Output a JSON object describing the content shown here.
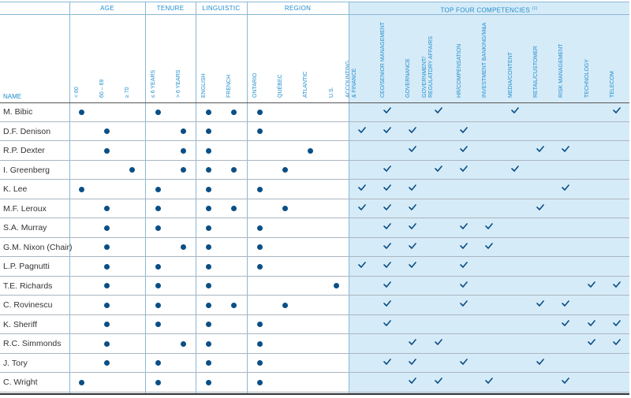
{
  "headers": {
    "name": "NAME",
    "age": "AGE",
    "tenure": "TENURE",
    "linguistic": "LINGUISTIC",
    "region": "REGION",
    "competencies": "TOP FOUR COMPETENCIES",
    "competencies_note": "(1)"
  },
  "columns": [
    {
      "label": "< 60"
    },
    {
      "label": "60 – 69"
    },
    {
      "label": "≥ 70"
    },
    {
      "label": "≤ 6 YEARS"
    },
    {
      "label": "> 6 YEARS"
    },
    {
      "label": "ENGLISH"
    },
    {
      "label": "FRENCH"
    },
    {
      "label": "ONTARIO"
    },
    {
      "label": "QUÉBEC"
    },
    {
      "label": "ATLANTIC"
    },
    {
      "label": "U.S."
    },
    {
      "label": "ACCOUNTING\n& FINANCE"
    },
    {
      "label": "CEO/SENIOR MANAGEMENT"
    },
    {
      "label": "GOVERNANCE"
    },
    {
      "label": "GOVERNMENT/\nREGULATORY AFFAIRS"
    },
    {
      "label": "HR/COMPENSATION"
    },
    {
      "label": "INVESTMENT BANKING/M&A"
    },
    {
      "label": "MEDIA/CONTENT"
    },
    {
      "label": "RETAIL/CUSTOMER"
    },
    {
      "label": "RISK MANAGEMENT"
    },
    {
      "label": "TECHNOLOGY"
    },
    {
      "label": "TELECOM"
    }
  ],
  "directors": [
    {
      "name": "M. Bibic",
      "marks": [
        0,
        3,
        5,
        6,
        7
      ],
      "checks": [
        12,
        14,
        17,
        21
      ]
    },
    {
      "name": "D.F. Denison",
      "marks": [
        1,
        4,
        5,
        7
      ],
      "checks": [
        11,
        12,
        13,
        15
      ]
    },
    {
      "name": "R.P. Dexter",
      "marks": [
        1,
        4,
        5,
        9
      ],
      "checks": [
        13,
        15,
        18,
        19
      ]
    },
    {
      "name": "I. Greenberg",
      "marks": [
        2,
        4,
        5,
        6,
        8
      ],
      "checks": [
        12,
        14,
        15,
        17
      ]
    },
    {
      "name": "K. Lee",
      "marks": [
        0,
        3,
        5,
        7
      ],
      "checks": [
        11,
        12,
        13,
        19
      ]
    },
    {
      "name": "M.F. Leroux",
      "marks": [
        1,
        3,
        5,
        6,
        8
      ],
      "checks": [
        11,
        12,
        13,
        18
      ]
    },
    {
      "name": "S.A. Murray",
      "marks": [
        1,
        3,
        5,
        7
      ],
      "checks": [
        12,
        13,
        15,
        16
      ]
    },
    {
      "name": "G.M. Nixon (Chair)",
      "marks": [
        1,
        4,
        5,
        7
      ],
      "checks": [
        12,
        13,
        15,
        16
      ]
    },
    {
      "name": "L.P. Pagnutti",
      "marks": [
        1,
        3,
        5,
        7
      ],
      "checks": [
        11,
        12,
        13,
        15
      ]
    },
    {
      "name": "T.E. Richards",
      "marks": [
        1,
        3,
        5,
        10
      ],
      "checks": [
        12,
        15,
        20,
        21
      ]
    },
    {
      "name": "C. Rovinescu",
      "marks": [
        1,
        3,
        5,
        6,
        8
      ],
      "checks": [
        12,
        15,
        18,
        19
      ]
    },
    {
      "name": "K. Sheriff",
      "marks": [
        1,
        3,
        5,
        7
      ],
      "checks": [
        12,
        19,
        20,
        21
      ]
    },
    {
      "name": "R.C. Simmonds",
      "marks": [
        1,
        4,
        5,
        7
      ],
      "checks": [
        13,
        14,
        20,
        21
      ]
    },
    {
      "name": "J. Tory",
      "marks": [
        1,
        3,
        5,
        7
      ],
      "checks": [
        12,
        13,
        15,
        18
      ]
    },
    {
      "name": "C. Wright",
      "marks": [
        0,
        3,
        5,
        7
      ],
      "checks": [
        13,
        14,
        16,
        19
      ]
    }
  ],
  "colors": {
    "dot": "#0a4f86",
    "check": "#0a4f86",
    "header_text": "#1f8dcc",
    "competency_bg": "#d6ebf8"
  }
}
